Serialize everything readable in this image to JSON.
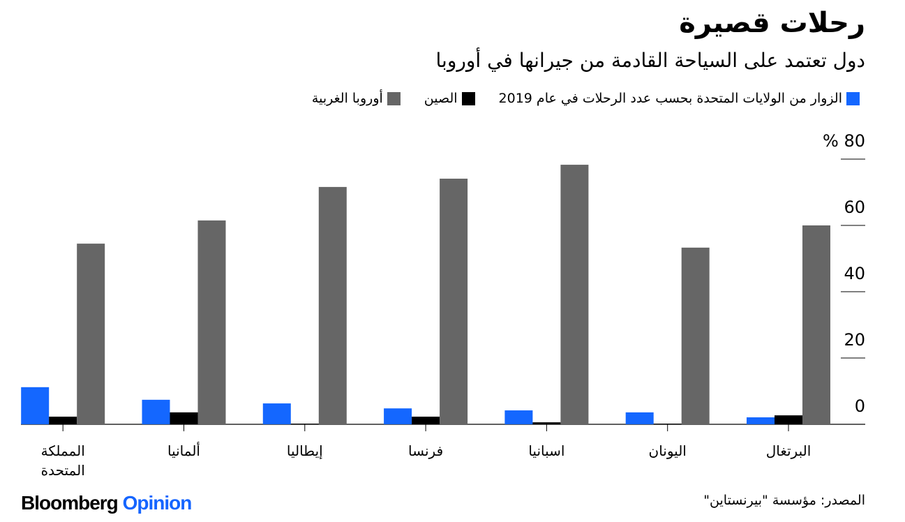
{
  "chart_data": {
    "type": "bar",
    "title": "رحلات قصيرة",
    "subtitle": "دول تعتمد على السياحة القادمة من جيرانها في أوروبا",
    "categories": [
      "البرتغال",
      "اليونان",
      "اسبانيا",
      "فرنسا",
      "إيطاليا",
      "ألمانيا",
      "المملكة المتحدة"
    ],
    "series": [
      {
        "name": "الزوار من الولايات المتحدة بحسب عدد الرحلات في عام 2019",
        "color": "#1467ff",
        "values": [
          2.1,
          3.6,
          4.2,
          4.8,
          6.3,
          7.4,
          11.2
        ]
      },
      {
        "name": "الصين",
        "color": "#000000",
        "values": [
          2.7,
          0.2,
          0.6,
          2.3,
          0.2,
          3.6,
          2.3
        ]
      },
      {
        "name": "أوروبا الغربية",
        "color": "#666666",
        "values": [
          60,
          53.3,
          78.3,
          74.1,
          71.6,
          61.5,
          54.5
        ]
      }
    ],
    "ylim": [
      0,
      80
    ],
    "yticks": [
      0,
      20,
      40,
      60,
      {
        "value": 80,
        "label": "% 80"
      }
    ],
    "grid": true,
    "source": "المصدر: مؤسسة \"بيرنستاين\"",
    "logo": {
      "brand": "Bloomberg",
      "product": "Opinion"
    }
  }
}
